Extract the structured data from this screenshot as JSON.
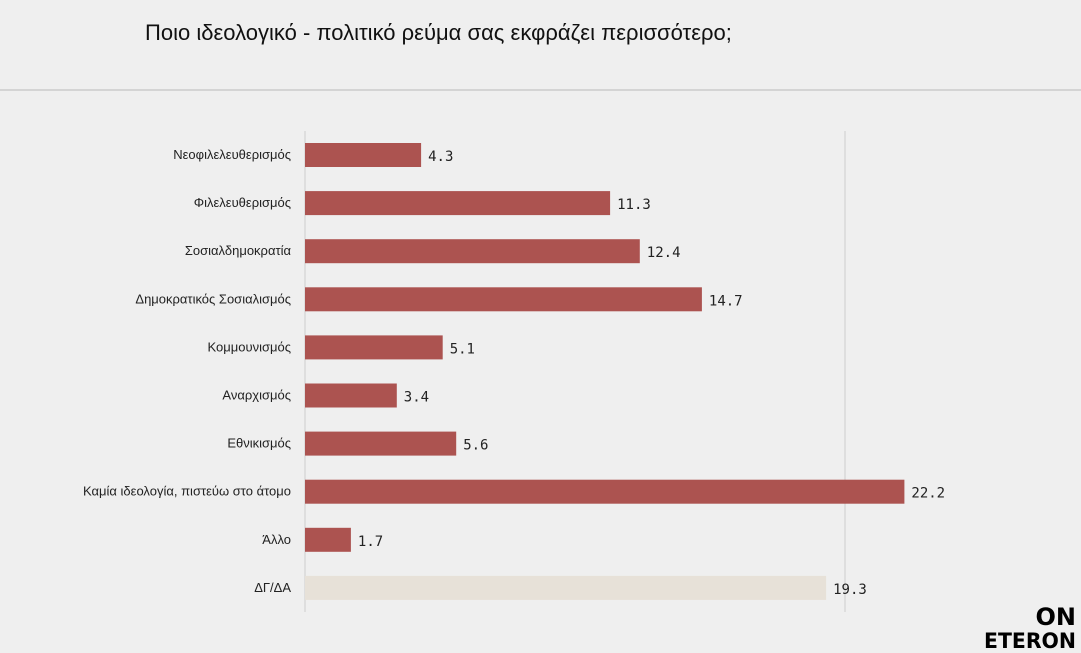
{
  "title": "Ποιο ιδεολογικό - πολιτικό ρεύμα σας εκφράζει περισσότερο;",
  "logo": {
    "line1": "ON",
    "line2": "ETERON"
  },
  "colors": {
    "bar": "#ac5350",
    "bar_muted": "#e7e1d8",
    "gridline": "#cccccc",
    "background": "#efefef"
  },
  "chart_data": {
    "type": "bar",
    "orientation": "horizontal",
    "title": "Ποιο ιδεολογικό - πολιτικό ρεύμα σας εκφράζει περισσότερο;",
    "categories": [
      "Νεοφιλελευθερισμός",
      "Φιλελευθερισμός",
      "Σοσιαλδημοκρατία",
      "Δημοκρατικός Σοσιαλισμός",
      "Κομμουνισμός",
      "Αναρχισμός",
      "Εθνικισμός",
      "Καμία ιδεολογία, πιστεύω στο άτομο",
      "Άλλο",
      "ΔΓ/ΔΑ"
    ],
    "values": [
      4.3,
      11.3,
      12.4,
      14.7,
      5.1,
      3.4,
      5.6,
      22.2,
      1.7,
      19.3
    ],
    "value_labels": [
      "4.3",
      "11.3",
      "12.4",
      "14.7",
      "5.1",
      "3.4",
      "5.6",
      "22.2",
      "1.7",
      "19.3"
    ],
    "muted_categories": [
      "ΔΓ/ΔΑ"
    ],
    "xlim": [
      0,
      25
    ],
    "xlabel": "",
    "ylabel": "",
    "grid": true,
    "legend": "none"
  }
}
